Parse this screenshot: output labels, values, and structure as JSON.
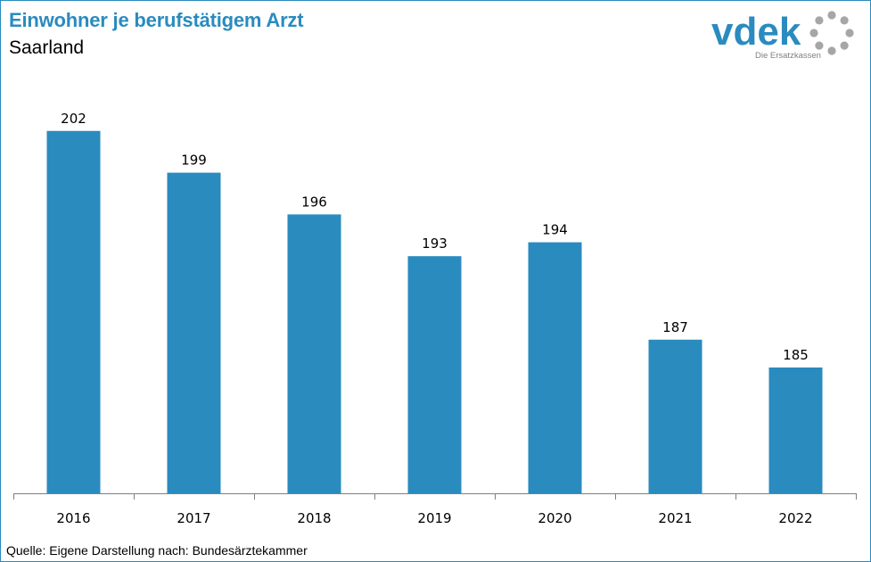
{
  "header": {
    "title": "Einwohner je berufstätigem Arzt",
    "subtitle": "Saarland"
  },
  "logo": {
    "wordmark": "vdek",
    "tagline": "Die Ersatzkassen",
    "color": "#2a8bbf",
    "ring_color": "#a6a6a6"
  },
  "footer": {
    "source": "Quelle: Eigene Darstellung nach: Bundesärztekammer"
  },
  "colors": {
    "bar": "#2a8bbf",
    "frame": "#2a8bbf",
    "title": "#2a8bbf"
  },
  "chart_data": {
    "type": "bar",
    "categories": [
      "2016",
      "2017",
      "2018",
      "2019",
      "2020",
      "2021",
      "2022"
    ],
    "values": [
      202,
      199,
      196,
      193,
      194,
      187,
      185
    ],
    "title": "Einwohner je berufstätigem Arzt",
    "subtitle": "Saarland",
    "xlabel": "",
    "ylabel": "",
    "ylim": [
      175,
      204
    ],
    "grid": false,
    "legend": "none",
    "data_labels": true
  }
}
